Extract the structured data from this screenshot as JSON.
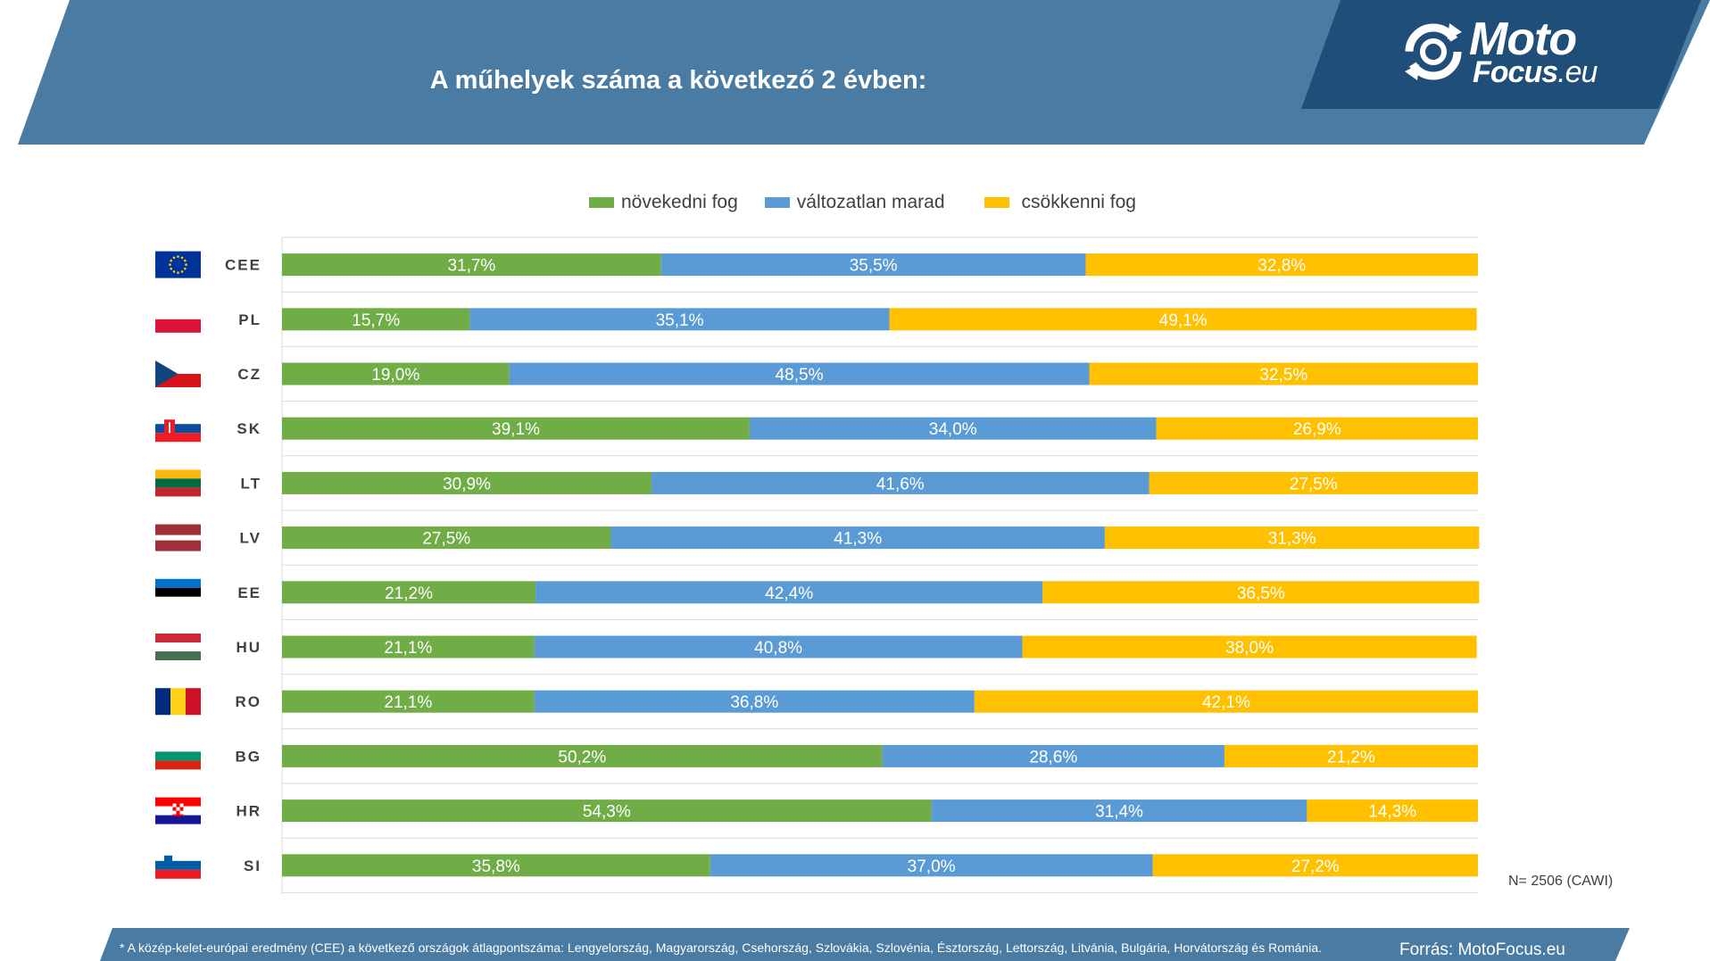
{
  "header": {
    "title": "A műhelyek száma a következő 2 évben:"
  },
  "logo": {
    "brand_top": "Moto",
    "brand_bottom": "Focus",
    "brand_suffix": ".eu",
    "icon": "refresh-gear-icon"
  },
  "colors": {
    "banner": "#4a7ba3",
    "logo_bg": "#1f4e79",
    "green": "#70ad47",
    "blue": "#5b9bd5",
    "yellow": "#ffc000"
  },
  "legend": [
    {
      "label": "növekedni fog",
      "color": "#70ad47"
    },
    {
      "label": "változatlan marad",
      "color": "#5b9bd5"
    },
    {
      "label": "csökkenni fog",
      "color": "#ffc000"
    }
  ],
  "chart_data": {
    "type": "bar",
    "orientation": "horizontal",
    "stacked": "100%",
    "categories": [
      "CEE",
      "PL",
      "CZ",
      "SK",
      "LT",
      "LV",
      "EE",
      "HU",
      "RO",
      "BG",
      "HR",
      "SI"
    ],
    "flags": [
      "eu-flag-icon",
      "poland-flag-icon",
      "czech-flag-icon",
      "slovakia-flag-icon",
      "lithuania-flag-icon",
      "latvia-flag-icon",
      "estonia-flag-icon",
      "hungary-flag-icon",
      "romania-flag-icon",
      "bulgaria-flag-icon",
      "croatia-flag-icon",
      "slovenia-flag-icon"
    ],
    "series": [
      {
        "name": "növekedni fog",
        "color": "#70ad47",
        "values": [
          31.7,
          15.7,
          19.0,
          39.1,
          30.9,
          27.5,
          21.2,
          21.1,
          21.1,
          50.2,
          54.3,
          35.8
        ],
        "labels": [
          "31,7%",
          "15,7%",
          "19,0%",
          "39,1%",
          "30,9%",
          "27,5%",
          "21,2%",
          "21,1%",
          "21,1%",
          "50,2%",
          "54,3%",
          "35,8%"
        ]
      },
      {
        "name": "változatlan marad",
        "color": "#5b9bd5",
        "values": [
          35.5,
          35.1,
          48.5,
          34.0,
          41.6,
          41.3,
          42.4,
          40.8,
          36.8,
          28.6,
          31.4,
          37.0
        ],
        "labels": [
          "35,5%",
          "35,1%",
          "48,5%",
          "34,0%",
          "41,6%",
          "41,3%",
          "42,4%",
          "40,8%",
          "36,8%",
          "28,6%",
          "31,4%",
          "37,0%"
        ]
      },
      {
        "name": "csökkenni fog",
        "color": "#ffc000",
        "values": [
          32.8,
          49.1,
          32.5,
          26.9,
          27.5,
          31.3,
          36.5,
          38.0,
          42.1,
          21.2,
          14.3,
          27.2
        ],
        "labels": [
          "32,8%",
          "49,1%",
          "32,5%",
          "26,9%",
          "27,5%",
          "31,3%",
          "36,5%",
          "38,0%",
          "42,1%",
          "21,2%",
          "14,3%",
          "27,2%"
        ]
      }
    ],
    "xlim": [
      0,
      100
    ],
    "grid": true,
    "legend_position": "top"
  },
  "sample_note": "N= 2506 (CAWI)",
  "footer": {
    "note": "* A közép-kelet-európai eredmény (CEE) a következő országok átlagpontszáma: Lengyelország, Magyarország, Csehország, Szlovákia, Szlovénia, Észtország, Lettország, Litvánia, Bulgária, Horvátország és Románia.",
    "source": "Forrás: MotoFocus.eu"
  }
}
